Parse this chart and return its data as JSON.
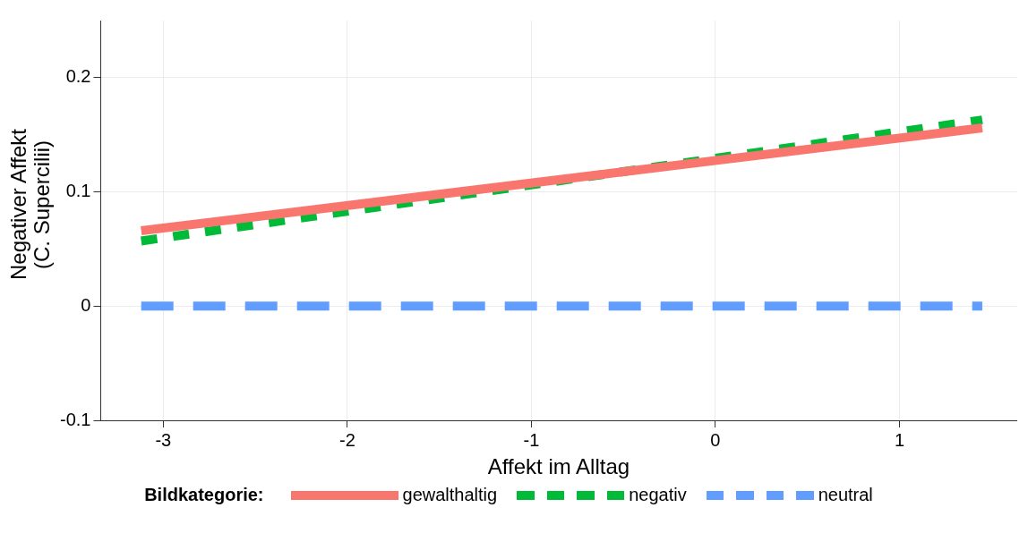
{
  "chart_data": {
    "type": "line",
    "xlabel": "Affekt im Alltag",
    "ylabel": "Negativer Affekt\n(C. Supercilii)",
    "legend_title": "Bildkategorie:",
    "legend": "bottom",
    "grid": true,
    "xlim": [
      -3.34,
      1.64
    ],
    "xticks": [
      -3,
      -2,
      -1,
      0,
      1
    ],
    "ylim": [
      -0.1,
      0.25
    ],
    "yticks": [
      -0.1,
      0.0,
      0.1,
      0.2
    ],
    "x": [
      -3.12,
      1.45
    ],
    "series": [
      {
        "name": "gewalthaltig",
        "color": "#f8766d",
        "line_style": "solid",
        "values": [
          0.066,
          0.156
        ]
      },
      {
        "name": "negativ",
        "color": "#00ba38",
        "line_style": "dashed",
        "values": [
          0.057,
          0.163
        ]
      },
      {
        "name": "neutral",
        "color": "#619cff",
        "line_style": "longdash",
        "values": [
          0,
          0
        ]
      }
    ]
  }
}
